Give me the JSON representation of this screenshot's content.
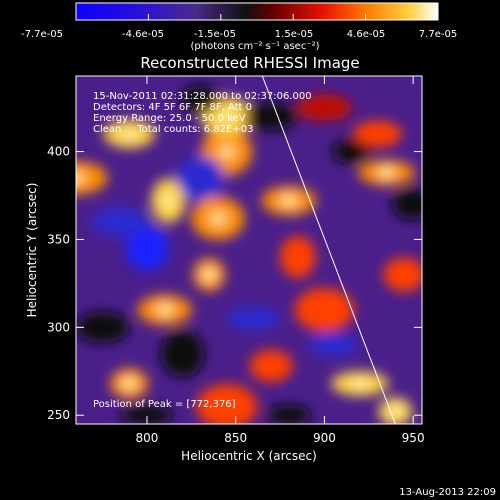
{
  "colorbar": {
    "tick_labels": [
      "-7.7e-05",
      "-4.6e-05",
      "-1.5e-05",
      "1.5e-05",
      "4.6e-05",
      "7.7e-05"
    ],
    "unit_label": "(photons cm⁻² s⁻¹ asec⁻²)",
    "range": [
      -7.7e-05,
      7.7e-05
    ]
  },
  "chart_data": {
    "type": "heatmap",
    "title": "Reconstructed RHESSI Image",
    "xlabel": "Heliocentric X (arcsec)",
    "ylabel": "Heliocentric Y (arcsec)",
    "xlim": [
      760,
      955
    ],
    "ylim": [
      245,
      443
    ],
    "x_ticks": [
      "800",
      "850",
      "900",
      "950"
    ],
    "y_ticks": [
      "250",
      "300",
      "350",
      "400"
    ],
    "x_tick_values": [
      800,
      850,
      900,
      950
    ],
    "y_tick_values": [
      250,
      300,
      350,
      400
    ],
    "annotations": [
      "15-Nov-2011 02:31:28.000 to 02:37:06.000",
      "Detectors: 4F 5F 6F 7F 8F, Att 0",
      "Energy Range: 25.0 - 50.0 keV",
      "Clean     Total counts: 6.82E+03"
    ],
    "peak_label": "Position of Peak = [772,376]",
    "peak_position": [
      772,
      376
    ],
    "limb_line": [
      [
        865,
        443
      ],
      [
        940,
        245
      ]
    ],
    "grid": false
  },
  "footer": {
    "timestamp": "13-Aug-2013 22:09"
  }
}
